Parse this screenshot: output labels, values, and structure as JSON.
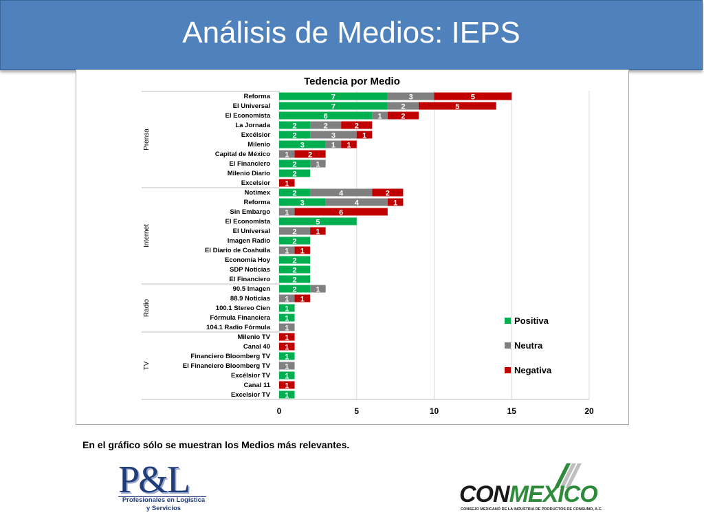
{
  "title": "Análisis de Medios: IEPS",
  "note": "En el gráfico sólo se muestran los Medios más relevantes.",
  "logos": {
    "pl": {
      "letters": "P&L",
      "line1": "Profesionales en Logística",
      "line2": "y Servicios"
    },
    "conmexico": {
      "word_dark": "CON",
      "word_green": "MEXICO",
      "subtitle": "CONSEJO MEXICANO DE LA INDUSTRIA DE PRODUCTOS DE CONSUMO, A.C."
    }
  },
  "colors": {
    "title_bg": "#4f81bd",
    "positiva": "#00b050",
    "neutra": "#808080",
    "negativa": "#c00000"
  },
  "chart_data": {
    "type": "bar",
    "orientation": "horizontal",
    "stacked": true,
    "title": "Tedencia por Medio",
    "xlim": [
      0,
      20
    ],
    "xticks": [
      0,
      5,
      10,
      15,
      20
    ],
    "grid": true,
    "legend_position": "right",
    "series": [
      {
        "name": "Positiva",
        "color": "#00b050"
      },
      {
        "name": "Neutra",
        "color": "#808080"
      },
      {
        "name": "Negativa",
        "color": "#c00000"
      }
    ],
    "groups": [
      {
        "name": "Prensa",
        "rows": [
          {
            "label": "Reforma",
            "values": [
              7,
              3,
              5
            ]
          },
          {
            "label": "El Universal",
            "values": [
              7,
              2,
              5
            ]
          },
          {
            "label": "El Economista",
            "values": [
              6,
              1,
              2
            ]
          },
          {
            "label": "La Jornada",
            "values": [
              2,
              2,
              2
            ]
          },
          {
            "label": "Excélsior",
            "values": [
              2,
              3,
              1
            ]
          },
          {
            "label": "Milenio",
            "values": [
              3,
              1,
              1
            ]
          },
          {
            "label": "Capital de México",
            "values": [
              0,
              1,
              2
            ]
          },
          {
            "label": "El Financiero",
            "values": [
              2,
              1,
              0
            ]
          },
          {
            "label": "Milenio Diario",
            "values": [
              2,
              0,
              0
            ]
          },
          {
            "label": "Excelsior",
            "values": [
              0,
              0,
              1
            ]
          }
        ]
      },
      {
        "name": "Internet",
        "rows": [
          {
            "label": "Notimex",
            "values": [
              2,
              4,
              2
            ]
          },
          {
            "label": "Reforma",
            "values": [
              3,
              4,
              1
            ]
          },
          {
            "label": "Sin Embargo",
            "values": [
              0,
              1,
              6
            ]
          },
          {
            "label": "El Economista",
            "values": [
              5,
              0,
              0
            ]
          },
          {
            "label": "El Universal",
            "values": [
              0,
              2,
              1
            ]
          },
          {
            "label": "Imagen Radio",
            "values": [
              2,
              0,
              0
            ]
          },
          {
            "label": "El Diario de Coahuila",
            "values": [
              0,
              1,
              1
            ]
          },
          {
            "label": "Economía Hoy",
            "values": [
              2,
              0,
              0
            ]
          },
          {
            "label": "SDP Noticias",
            "values": [
              2,
              0,
              0
            ]
          },
          {
            "label": "El Financiero",
            "values": [
              2,
              0,
              0
            ]
          }
        ]
      },
      {
        "name": "Radio",
        "rows": [
          {
            "label": "90.5 Imagen",
            "values": [
              2,
              1,
              0
            ]
          },
          {
            "label": "88.9 Noticias",
            "values": [
              0,
              1,
              1
            ]
          },
          {
            "label": "100.1 Stereo Cien",
            "values": [
              1,
              0,
              0
            ]
          },
          {
            "label": "Fórmula Financiera",
            "values": [
              1,
              0,
              0
            ]
          },
          {
            "label": "104.1 Radio Fórmula",
            "values": [
              0,
              1,
              0
            ]
          }
        ]
      },
      {
        "name": "TV",
        "rows": [
          {
            "label": "Milenio TV",
            "values": [
              0,
              0,
              1
            ]
          },
          {
            "label": "Canal 40",
            "values": [
              0,
              0,
              1
            ]
          },
          {
            "label": "Financiero Bloomberg TV",
            "values": [
              1,
              0,
              0
            ]
          },
          {
            "label": "El Financiero Bloomberg TV",
            "values": [
              0,
              1,
              0
            ]
          },
          {
            "label": "Excélsior TV",
            "values": [
              1,
              0,
              0
            ]
          },
          {
            "label": "Canal 11",
            "values": [
              0,
              0,
              1
            ]
          },
          {
            "label": "Excelsior TV",
            "values": [
              1,
              0,
              0
            ]
          }
        ]
      }
    ]
  }
}
